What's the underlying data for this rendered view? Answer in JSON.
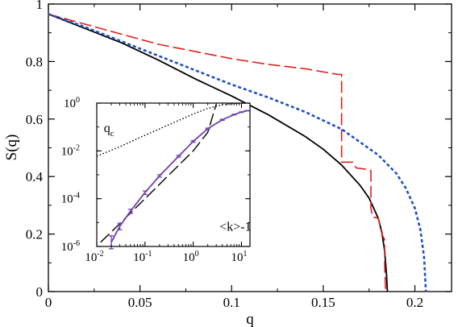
{
  "chart_data": {
    "type": "line",
    "title": "",
    "xlabel": "q",
    "ylabel": "S(q)",
    "xlim": [
      0,
      0.22
    ],
    "ylim": [
      0,
      1
    ],
    "x_ticks": [
      {
        "value": 0,
        "label": "0"
      },
      {
        "value": 0.05,
        "label": "0.05"
      },
      {
        "value": 0.1,
        "label": "0.1"
      },
      {
        "value": 0.15,
        "label": "0.15"
      },
      {
        "value": 0.2,
        "label": "0.2"
      }
    ],
    "y_ticks": [
      {
        "value": 0,
        "label": "0"
      },
      {
        "value": 0.2,
        "label": "0.2"
      },
      {
        "value": 0.4,
        "label": "0.4"
      },
      {
        "value": 0.6,
        "label": "0.6"
      },
      {
        "value": 0.8,
        "label": "0.8"
      },
      {
        "value": 1,
        "label": "1"
      }
    ],
    "grid": false,
    "legend": "none",
    "series": [
      {
        "style": "solid",
        "color": "#000000",
        "x": [
          0,
          0.02,
          0.04,
          0.06,
          0.08,
          0.1,
          0.12,
          0.14,
          0.15,
          0.16,
          0.17,
          0.175,
          0.18,
          0.182,
          0.1835,
          0.1845,
          0.185
        ],
        "y": [
          0.965,
          0.915,
          0.865,
          0.805,
          0.74,
          0.68,
          0.615,
          0.54,
          0.495,
          0.44,
          0.37,
          0.325,
          0.255,
          0.205,
          0.14,
          0.06,
          0
        ]
      },
      {
        "style": "long-dash",
        "color": "#e02020",
        "x": [
          0,
          0.02,
          0.04,
          0.06,
          0.08,
          0.1,
          0.12,
          0.14,
          0.158,
          0.16,
          0.16,
          0.166,
          0.168,
          0.174,
          0.176,
          0.176,
          0.177,
          0.18,
          0.182,
          0.1835,
          0.1835,
          0.184
        ],
        "y": [
          0.965,
          0.93,
          0.895,
          0.86,
          0.835,
          0.81,
          0.79,
          0.775,
          0.755,
          0.755,
          0.45,
          0.45,
          0.43,
          0.425,
          0.42,
          0.29,
          0.26,
          0.255,
          0.2,
          0.18,
          0.09,
          0
        ]
      },
      {
        "style": "short-dash",
        "color": "#2050c0",
        "x": [
          0,
          0.02,
          0.04,
          0.06,
          0.08,
          0.1,
          0.12,
          0.14,
          0.16,
          0.18,
          0.19,
          0.195,
          0.2,
          0.203,
          0.205,
          0.206
        ],
        "y": [
          0.965,
          0.92,
          0.87,
          0.82,
          0.77,
          0.72,
          0.675,
          0.625,
          0.565,
          0.475,
          0.41,
          0.36,
          0.29,
          0.215,
          0.12,
          0
        ]
      }
    ],
    "inset": {
      "type": "line",
      "x_scale": "log",
      "y_scale": "log",
      "xlim": [
        0.01,
        15
      ],
      "ylim": [
        1e-06,
        1
      ],
      "x_ticks": [
        {
          "value": 0.01,
          "base": "10",
          "exp": "-2"
        },
        {
          "value": 0.1,
          "base": "10",
          "exp": "-1"
        },
        {
          "value": 1,
          "base": "10",
          "exp": "0"
        },
        {
          "value": 10,
          "base": "10",
          "exp": "1"
        }
      ],
      "y_ticks": [
        {
          "value": 1e-06,
          "base": "10",
          "exp": "-6"
        },
        {
          "value": 0.0001,
          "base": "10",
          "exp": "-4"
        },
        {
          "value": 0.01,
          "base": "10",
          "exp": "-2"
        },
        {
          "value": 1,
          "base": "10",
          "exp": "0"
        }
      ],
      "annotations": [
        {
          "text": "q",
          "sub": "c",
          "x": 0.014,
          "y": 0.06
        },
        {
          "text": "<k>-1",
          "x": 3.5,
          "y": 4.5e-06
        }
      ],
      "series": [
        {
          "style": "dotted",
          "color": "#000000",
          "x": [
            0.01,
            0.03,
            0.1,
            0.3,
            1,
            2,
            4,
            8,
            15
          ],
          "y": [
            0.006,
            0.015,
            0.045,
            0.12,
            0.35,
            0.6,
            0.85,
            0.97,
            1
          ]
        },
        {
          "style": "long-dash",
          "color": "#000000",
          "x": [
            0.012,
            0.03,
            0.1,
            0.3,
            1,
            2,
            3
          ],
          "y": [
            1.5e-06,
            9e-06,
            0.0001,
            0.0009,
            0.01,
            0.06,
            0.9
          ]
        },
        {
          "style": "solid",
          "color": "#7040b0",
          "error_bars": true,
          "x": [
            0.02,
            0.03,
            0.05,
            0.1,
            0.2,
            0.5,
            1,
            2,
            4,
            7,
            10,
            13
          ],
          "y": [
            1.5e-06,
            7e-06,
            3e-05,
            0.00018,
            0.0009,
            0.006,
            0.025,
            0.085,
            0.2,
            0.33,
            0.42,
            0.48
          ],
          "err_low": [
            8e-07,
            5e-06,
            2.4e-05,
            0.00015,
            0.0008,
            0.0055,
            0.023,
            0.08,
            0.19,
            0.32,
            0.41,
            0.47
          ],
          "err_high": [
            2.8e-06,
            9.5e-06,
            3.6e-05,
            0.00021,
            0.001,
            0.0065,
            0.027,
            0.09,
            0.21,
            0.34,
            0.43,
            0.49
          ]
        }
      ]
    }
  }
}
